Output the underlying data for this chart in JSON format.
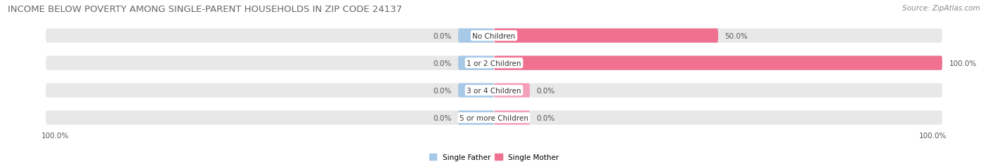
{
  "title": "INCOME BELOW POVERTY AMONG SINGLE-PARENT HOUSEHOLDS IN ZIP CODE 24137",
  "source": "Source: ZipAtlas.com",
  "categories": [
    "No Children",
    "1 or 2 Children",
    "3 or 4 Children",
    "5 or more Children"
  ],
  "single_father": [
    0.0,
    0.0,
    0.0,
    0.0
  ],
  "single_mother": [
    50.0,
    100.0,
    0.0,
    0.0
  ],
  "father_color": "#a8c8e8",
  "mother_color": "#f07090",
  "mother_color_light": "#f4a0b8",
  "bar_bg_color": "#e8e8e8",
  "label_father": [
    "0.0%",
    "0.0%",
    "0.0%",
    "0.0%"
  ],
  "label_mother": [
    "50.0%",
    "100.0%",
    "0.0%",
    "0.0%"
  ],
  "axis_left_label": "100.0%",
  "axis_right_label": "100.0%",
  "legend_father": "Single Father",
  "legend_mother": "Single Mother",
  "title_fontsize": 9.5,
  "source_fontsize": 7.5,
  "label_fontsize": 7.5,
  "category_fontsize": 7.5,
  "max_value": 100.0,
  "min_bar_width": 8.0,
  "fig_width": 14.06,
  "fig_height": 2.32
}
